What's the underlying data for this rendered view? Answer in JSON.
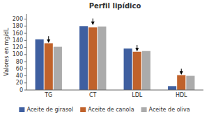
{
  "chart_data": {
    "type": "bar",
    "title": "Perfil lipídico",
    "ylabel": "Valores en mg/dL",
    "categories": [
      "TG",
      "CT",
      "LDL",
      "HDL"
    ],
    "series": [
      {
        "name": "Aceite de girasol",
        "color": "#3F5FA0",
        "values": [
          143,
          180,
          117,
          11
        ]
      },
      {
        "name": "Aceite de canola",
        "color": "#C0622B",
        "values": [
          132,
          177,
          108,
          42
        ],
        "arrow_tips": [
          133,
          183,
          109,
          43
        ],
        "arrow_tails": [
          152,
          202,
          127,
          60
        ]
      },
      {
        "name": "Aceite de oliva",
        "color": "#ABABAB",
        "values": [
          122,
          179,
          110,
          40
        ]
      }
    ],
    "ylim": [
      0,
      215
    ],
    "yticks": [
      0,
      20,
      40,
      60,
      80,
      100,
      120,
      140,
      160,
      180,
      200
    ],
    "grid": false,
    "legend": "bottom"
  }
}
